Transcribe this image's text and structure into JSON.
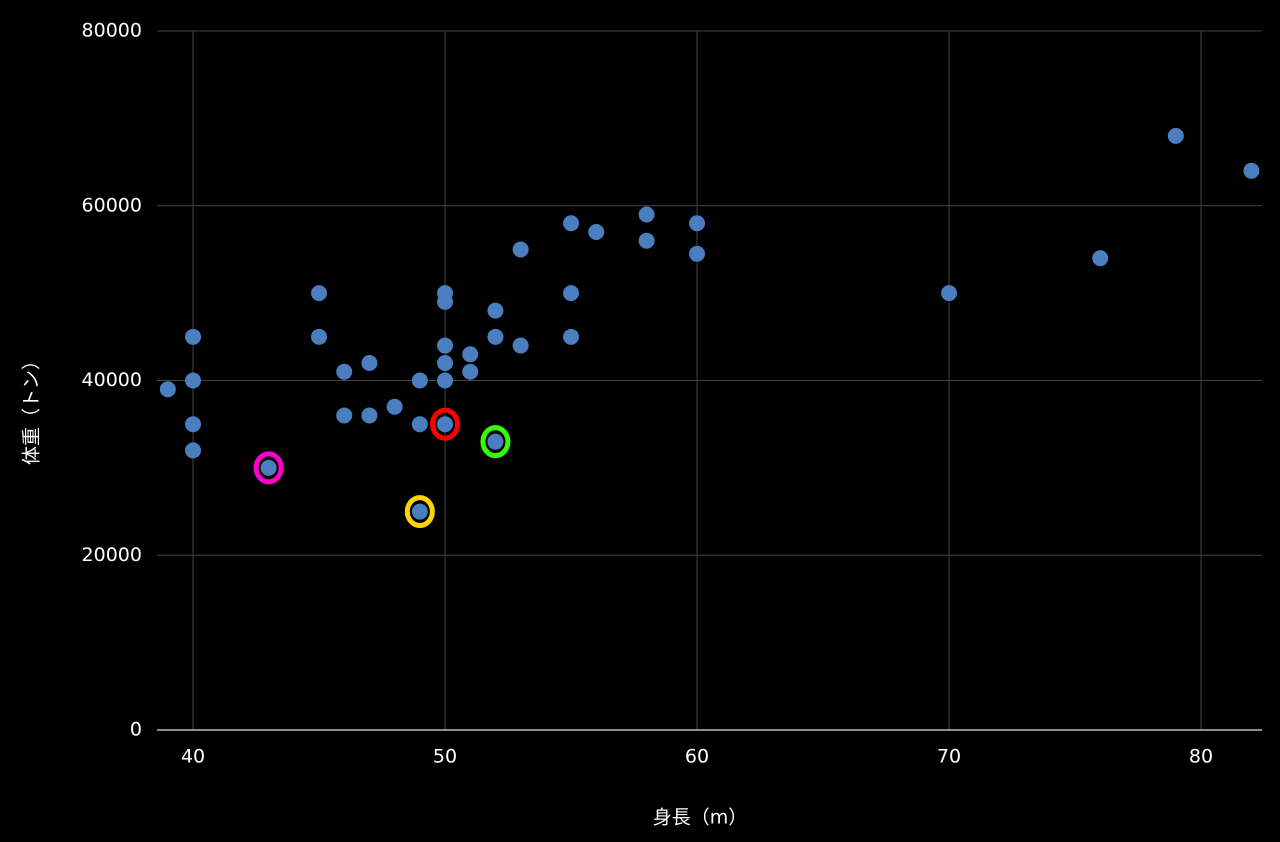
{
  "chart_data": {
    "type": "scatter",
    "x_label": "身長（m）",
    "y_label": "体重（トン）",
    "xlim": [
      38.57,
      82.42
    ],
    "ylim": [
      0,
      80000
    ],
    "xticks": [
      40,
      50,
      60,
      70,
      80
    ],
    "yticks": [
      0,
      20000,
      40000,
      60000,
      80000
    ],
    "grid": true,
    "series": [
      {
        "color": "#4a7ebf",
        "x": [
          39,
          40,
          40,
          40,
          40,
          43,
          45,
          45,
          46,
          46,
          47,
          47,
          48,
          49,
          49,
          49,
          50,
          50,
          50,
          50,
          50,
          50,
          51,
          51,
          52,
          52,
          52,
          53,
          53,
          55,
          55,
          55,
          56,
          58,
          58,
          60,
          60,
          70,
          76,
          79,
          82
        ],
        "values": [
          39000,
          45000,
          40000,
          35000,
          32000,
          30000,
          50000,
          45000,
          41000,
          36000,
          42000,
          36000,
          37000,
          40000,
          35000,
          25000,
          50000,
          49000,
          44000,
          42000,
          40000,
          35000,
          43000,
          41000,
          48000,
          45000,
          33000,
          55000,
          44000,
          58000,
          50000,
          45000,
          57000,
          59000,
          56000,
          58000,
          54500,
          50000,
          54000,
          68000,
          64000
        ],
        "ring_colors": [
          null,
          null,
          null,
          null,
          null,
          "#ff00cc",
          null,
          null,
          null,
          null,
          null,
          null,
          null,
          null,
          null,
          "#ffd400",
          null,
          null,
          null,
          null,
          null,
          "#ff0000",
          null,
          null,
          null,
          null,
          "#33ff00",
          null,
          null,
          null,
          null,
          null,
          null,
          null,
          null,
          null,
          null,
          null,
          null,
          null,
          null
        ]
      }
    ]
  }
}
